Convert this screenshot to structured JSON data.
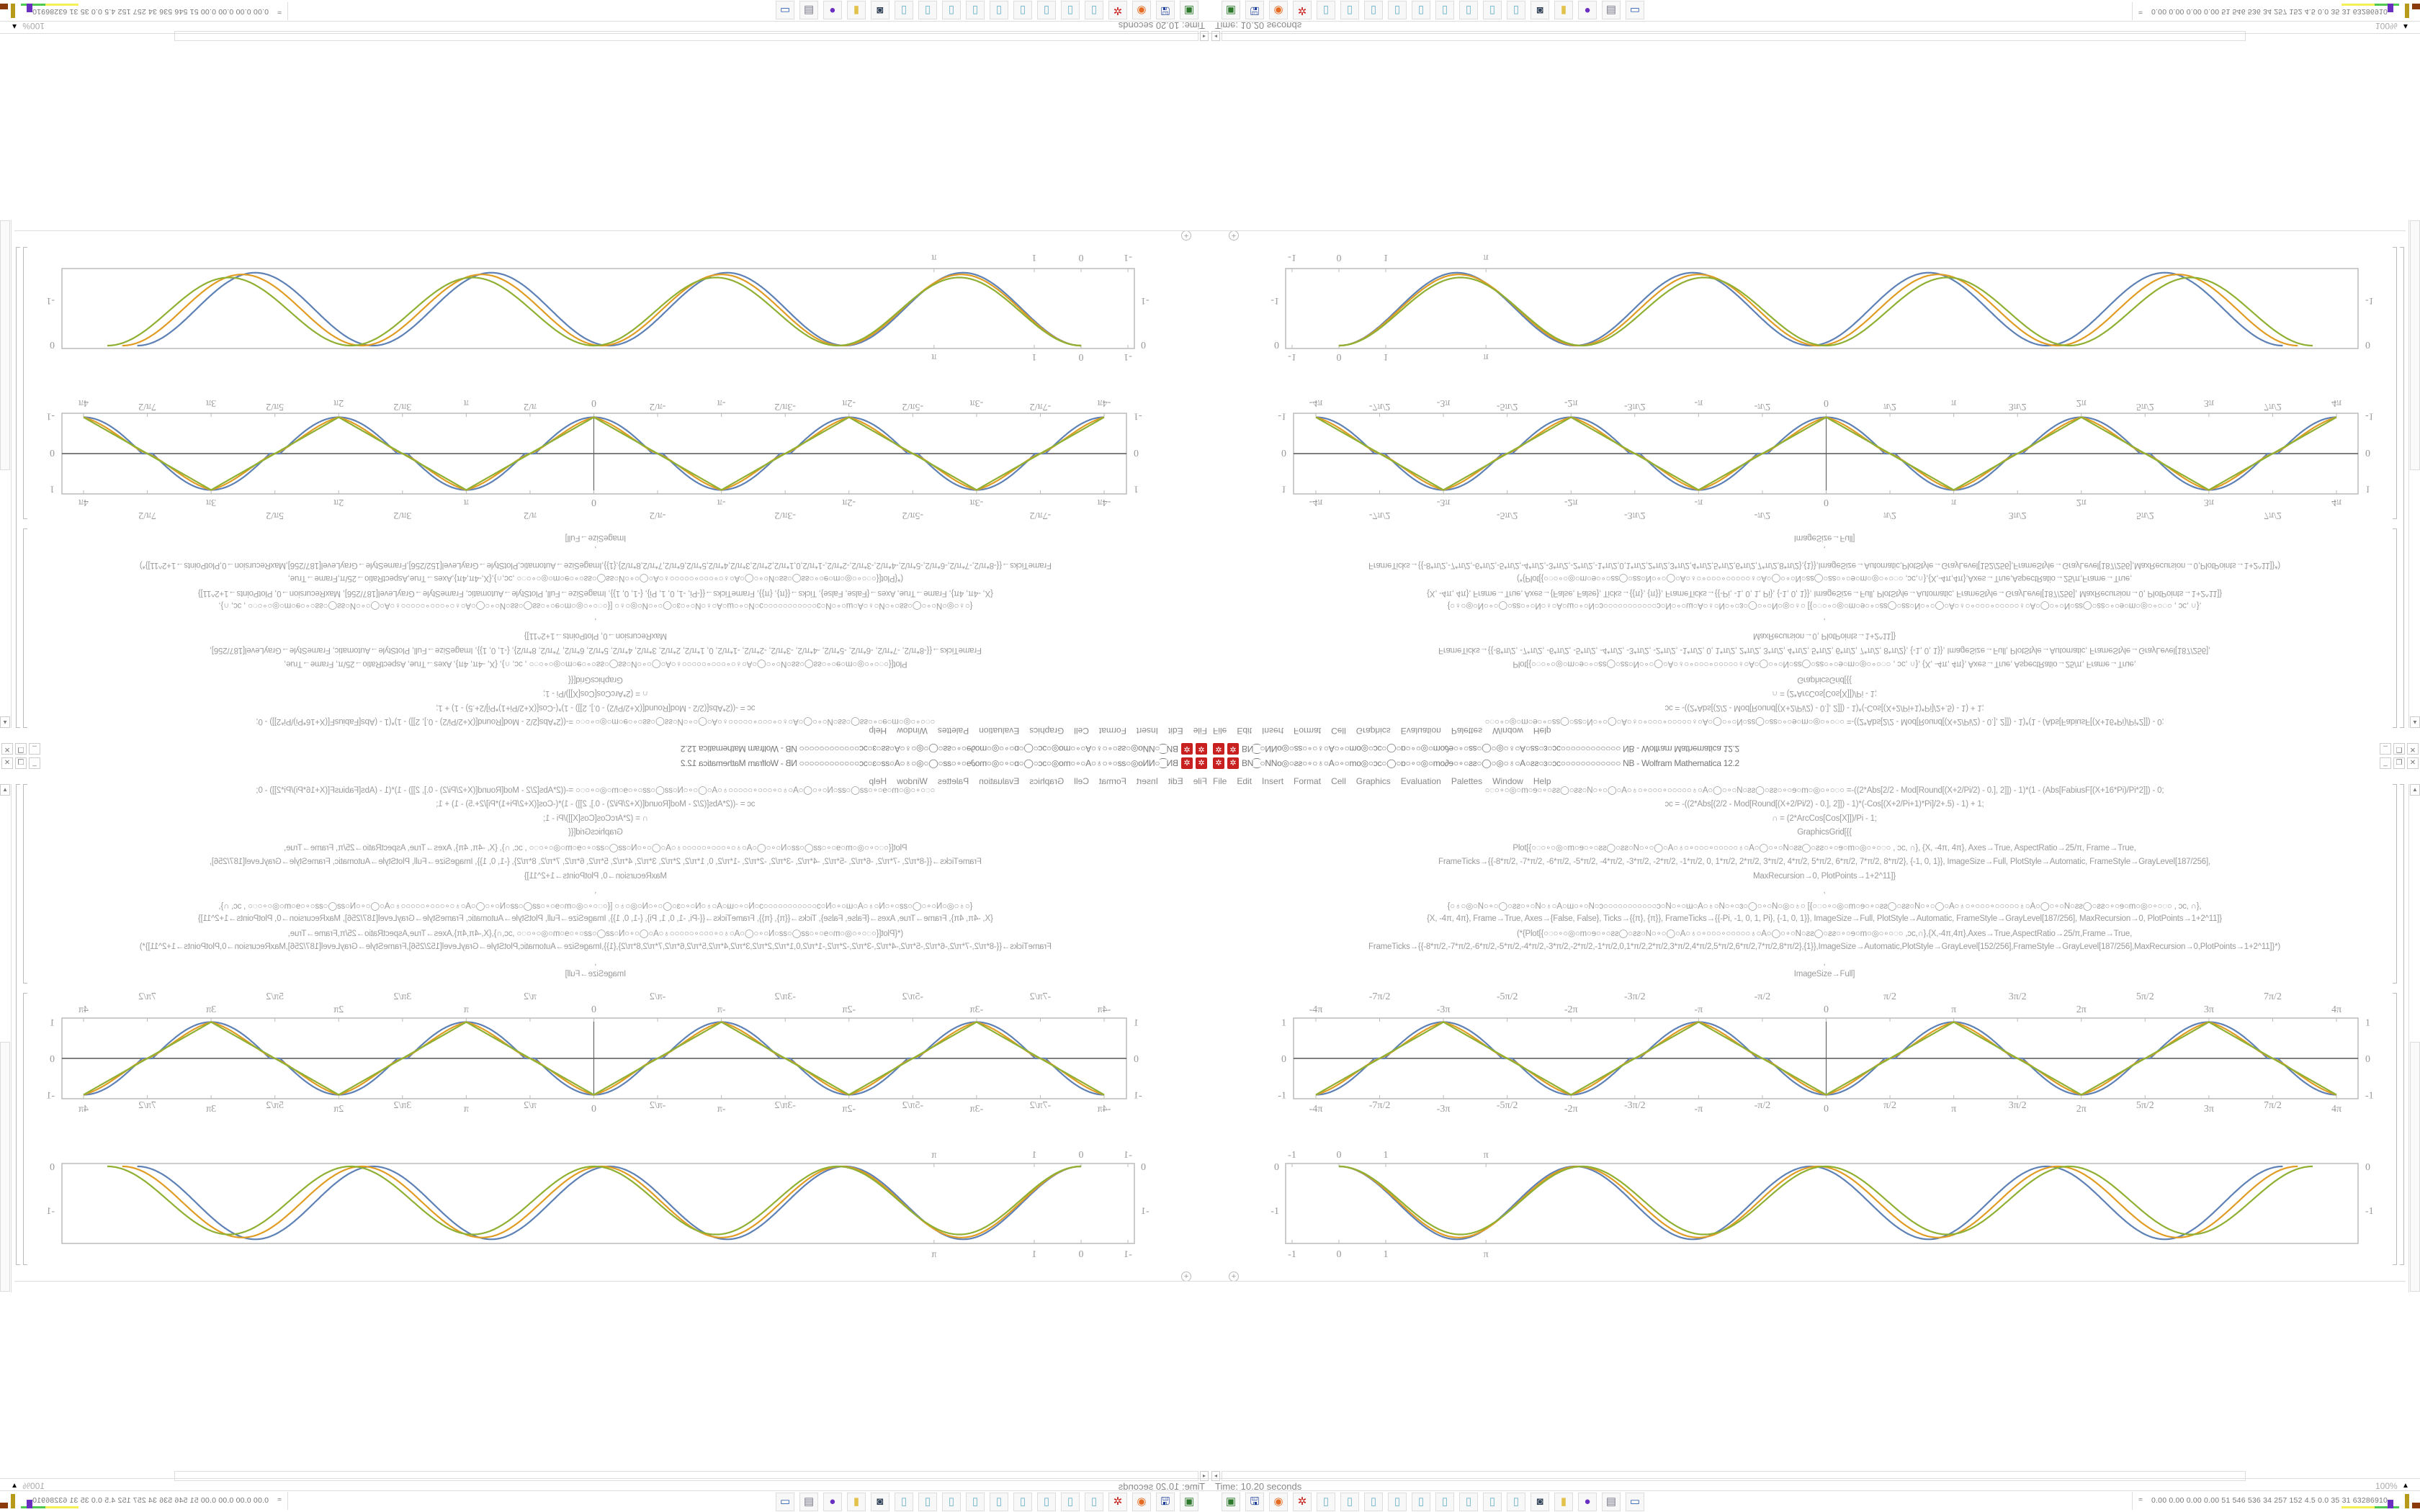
{
  "window": {
    "title_glyphs": "BN⁐○NNo◎○ƨƨ○∘○♁○A○∘○mo◎○ↄc○◯○ɒ○∘○◎○mo∂ɘ○∘○ƨƨ○◯○◎○♁○A○ƨƨ○ɜ○ↄc○○○○○○○○○○○○",
    "title_suffix": "NB - Wolfram Mathematica 12.2",
    "controls": [
      "_",
      "❐",
      "✕"
    ]
  },
  "menu": [
    "File",
    "Edit",
    "Insert",
    "Format",
    "Cell",
    "Graphics",
    "Evaluation",
    "Palettes",
    "Window",
    "Help"
  ],
  "code": {
    "lines": [
      "○◌○∘○◎○m○ɘ○∘○ƨƨ◯○ƨƨ○N○∘○◯○A○♁○∘○○○∘○○○○○♁○A○◯○∘○N○ƨƨ◯○ƨƨ○∘○ɘ○m○◎○∘○◌○    =-((2*Abs[2/2 - Mod[Round[(X+2/Pi/2) - 0.], 2]]) - 1)*(1 - (Abs[FabiusF[(X+16*Pi)/Pi*2]]) - 0;",
      "ↄc = -((2*Abs[(2/2 - Mod[Round[(X+2/Pi/2) - 0.], 2]]) - 1)*(-Cos[(X+2/Pi+1)*Pi]/2+.5) - 1) + 1;",
      "∩ = (2*ArcCos[Cos[X]])/Pi - 1;",
      "GraphicsGrid[{{",
      "Plot[{○◌○∘○◎○m○ɘ○∘○ƨƨ◯○ƨƨ○N○∘○◯○A○♁○∘○○○∘○○○○○♁○A○◯○∘○N○ƨƨ◯○ƨƨ○∘○ɘ○m○◎○∘○◌○   , ↄc, ∩}, {X, -4π, 4π}, Axes→True, AspectRatio→25/π, Frame→True,",
      "FrameTicks→{{-8*π/2, -7*π/2, -6*π/2, -5*π/2, -4*π/2, -3*π/2, -2*π/2, -1*π/2, 0, 1*π/2, 2*π/2, 3*π/2, 4*π/2, 5*π/2, 6*π/2, 7*π/2, 8*π/2}, {-1, 0, 1}}, ImageSize→Full, PlotStyle→Automatic, FrameStyle→GrayLevel[187/256],",
      "MaxRecursion→0, PlotPoints→1+2^11]}",
      ",",
      "{○♁○◎○N○∘○◯○ƨƨ○∘○N○♁○A○ɯ○∘○N○ɔ○○○○○○○○○○○ɔ○N○∘○ɯ○A○♁○N○∘○ɜ○◯○∘○N○◎○♁○  [{○◌○∘○◎○m○ɘ○∘○ƨƨ◯○ƨƨ○N○∘○◯○A○♁○∘○○○∘○○○○○♁○A○◯○∘○N○ƨƨ◯○ƨƨ○∘○ɘ○m○◎○∘○◌○   , ↄc, ∩},",
      "{X, -4π, 4π}, Frame→True, Axes→{False, False}, Ticks→{{π}, {π}}, FrameTicks→{{-Pi, -1, 0, 1, Pi}, {-1, 0, 1}}, ImageSize→Full, PlotStyle→Automatic, FrameStyle→GrayLevel[187/256], MaxRecursion→0, PlotPoints→1+2^11]}",
      "(*{Plot[{○◌○∘○◎○m○ɘ○∘○ƨƨ◯○ƨƨ○N○∘○◯○A○♁○∘○○○∘○○○○○♁○A○◯○∘○N○ƨƨ◯○ƨƨ○∘○ɘ○m○◎○∘○◌○   ,ↄc,∩},{X,-4π,4π},Axes→True,AspectRatio→25/π,Frame→True,",
      "FrameTicks→{{-8*π/2,-7*π/2,-6*π/2,-5*π/2,-4*π/2,-3*π/2,-2*π/2,-1*π/2,0,1*π/2,2*π/2,3*π/2,4*π/2,5*π/2,6*π/2,7*π/2,8*π/2},{1}},ImageSize→Automatic,PlotStyle→GrayLevel[152/256],FrameStyle→GrayLevel[187/256],MaxRecursion→0,PlotPoints→1+2^11]}*)",
      ",",
      "ImageSize→Full]"
    ]
  },
  "plots": [
    {
      "type": "line",
      "x_range": [
        "-4π",
        "4π"
      ],
      "y_range": [
        -1,
        1
      ],
      "x_ticks": [
        "-4π",
        "-7π/2",
        "-3π",
        "-5π/2",
        "-2π",
        "-3π/2",
        "-π",
        "-π/2",
        "0",
        "π/2",
        "π",
        "3π/2",
        "2π",
        "5π/2",
        "3π",
        "7π/2",
        "4π"
      ],
      "y_ticks": [
        "-1",
        "0",
        "1"
      ],
      "axes": true,
      "series_colors": [
        "#5e81b5",
        "#e19c24",
        "#8fb032"
      ]
    },
    {
      "type": "line",
      "x_ticks": [
        "-1",
        "0",
        "1",
        "π"
      ],
      "y_ticks": [
        "0",
        "-1"
      ],
      "axes": false,
      "series_colors": [
        "#5e81b5",
        "#e19c24",
        "#8fb032"
      ]
    }
  ],
  "status": {
    "time": "Time: 10.20 seconds",
    "zoom": "100%"
  },
  "taskbar": {
    "icons": [
      "terminal-icon",
      "floppy-disk-icon",
      "firefox-icon",
      "gear-app-icon",
      "notepad-icon",
      "notepad-icon",
      "notepad-icon",
      "notepad-icon",
      "notepad-icon",
      "notepad-icon",
      "notepad-icon",
      "notepad-icon",
      "notepad-icon",
      "camera-icon",
      "folder-icon",
      "purple-app-icon",
      "document-icon",
      "window-icon"
    ]
  },
  "tray": {
    "chevron": "≈",
    "stats": "0.00 0.00 0.00 0.00   51   546  536   34   257  152   4.5   0.0   35   31  63286910"
  },
  "colors": {
    "frame": "#bbbbbb",
    "app_red": "#c8201f"
  }
}
